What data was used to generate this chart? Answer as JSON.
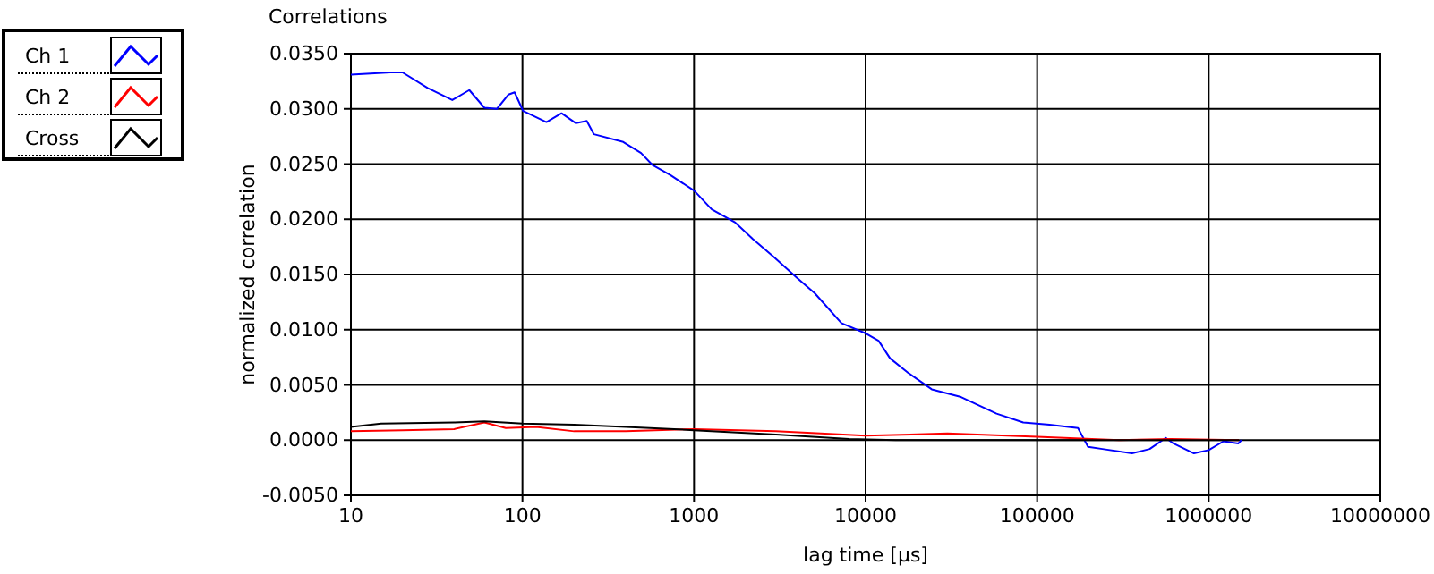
{
  "chart_data": {
    "type": "line",
    "title": "Correlations",
    "xlabel": "lag time [µs]",
    "ylabel": "normalized correlation",
    "log": "x",
    "grid": true,
    "legend": "top left",
    "xlim": [
      10,
      10000000
    ],
    "xticks": [
      10,
      100,
      1000,
      10000,
      100000,
      1000000,
      10000000
    ],
    "ylim": [
      -0.005,
      0.035
    ],
    "yticks": [
      {
        "value": -0.005,
        "label": "-0.0050"
      },
      {
        "value": 0,
        "label": "0.0000"
      },
      {
        "value": 0.005,
        "label": "0.0050"
      },
      {
        "value": 0.01,
        "label": "0.0100"
      },
      {
        "value": 0.015,
        "label": "0.0150"
      },
      {
        "value": 0.02,
        "label": "0.0200"
      },
      {
        "value": 0.025,
        "label": "0.0250"
      },
      {
        "value": 0.03,
        "label": "0.0300"
      },
      {
        "value": 0.035,
        "label": "0.0350"
      }
    ],
    "series": [
      {
        "name": "Ch 1",
        "color": "#0000ff",
        "x": [
          10,
          17,
          20,
          28,
          39,
          49,
          60,
          71,
          83,
          90,
          101,
          138,
          169,
          205,
          237,
          261,
          387,
          491,
          574,
          729,
          1000,
          1268,
          1740,
          2207,
          2911,
          3981,
          5058,
          7228,
          9908,
          11900,
          13900,
          17700,
          24300,
          36000,
          58000,
          83000,
          118000,
          173000,
          198000,
          240000,
          357000,
          453000,
          562000,
          622000,
          820000,
          1000000,
          1220000,
          1490000,
          1550000
        ],
        "values": [
          0.0331,
          0.0333,
          0.0333,
          0.0319,
          0.0308,
          0.0317,
          0.0301,
          0.03,
          0.0313,
          0.0315,
          0.0298,
          0.0288,
          0.0296,
          0.0287,
          0.0289,
          0.0277,
          0.027,
          0.026,
          0.0249,
          0.024,
          0.0226,
          0.0209,
          0.0197,
          0.0182,
          0.0166,
          0.0147,
          0.0133,
          0.0106,
          0.0097,
          0.009,
          0.0074,
          0.0061,
          0.0046,
          0.0039,
          0.0024,
          0.0016,
          0.0014,
          0.0011,
          -0.0006,
          -0.0008,
          -0.0012,
          -0.0008,
          0.0002,
          -0.0003,
          -0.0012,
          -0.0009,
          -0.0001,
          -0.0003,
          0
        ]
      },
      {
        "name": "Ch 2",
        "color": "#ff0000",
        "x": [
          10,
          20,
          40,
          60,
          80,
          120,
          200,
          400,
          1000,
          3000,
          10000,
          30000,
          100000,
          300000,
          600000,
          1500000
        ],
        "values": [
          0.0008,
          0.0009,
          0.001,
          0.0016,
          0.0011,
          0.0012,
          0.0008,
          0.0008,
          0.001,
          0.0008,
          0.0004,
          0.0006,
          0.0003,
          0,
          0.0001,
          0
        ]
      },
      {
        "name": "Cross",
        "color": "#000000",
        "x": [
          10,
          15,
          40,
          60,
          100,
          200,
          400,
          1000,
          3000,
          8000,
          15000,
          100000,
          1500000
        ],
        "values": [
          0.0012,
          0.0015,
          0.0016,
          0.0017,
          0.0015,
          0.0014,
          0.0012,
          0.0009,
          0.0005,
          0.0001,
          0,
          0,
          0
        ]
      }
    ]
  }
}
